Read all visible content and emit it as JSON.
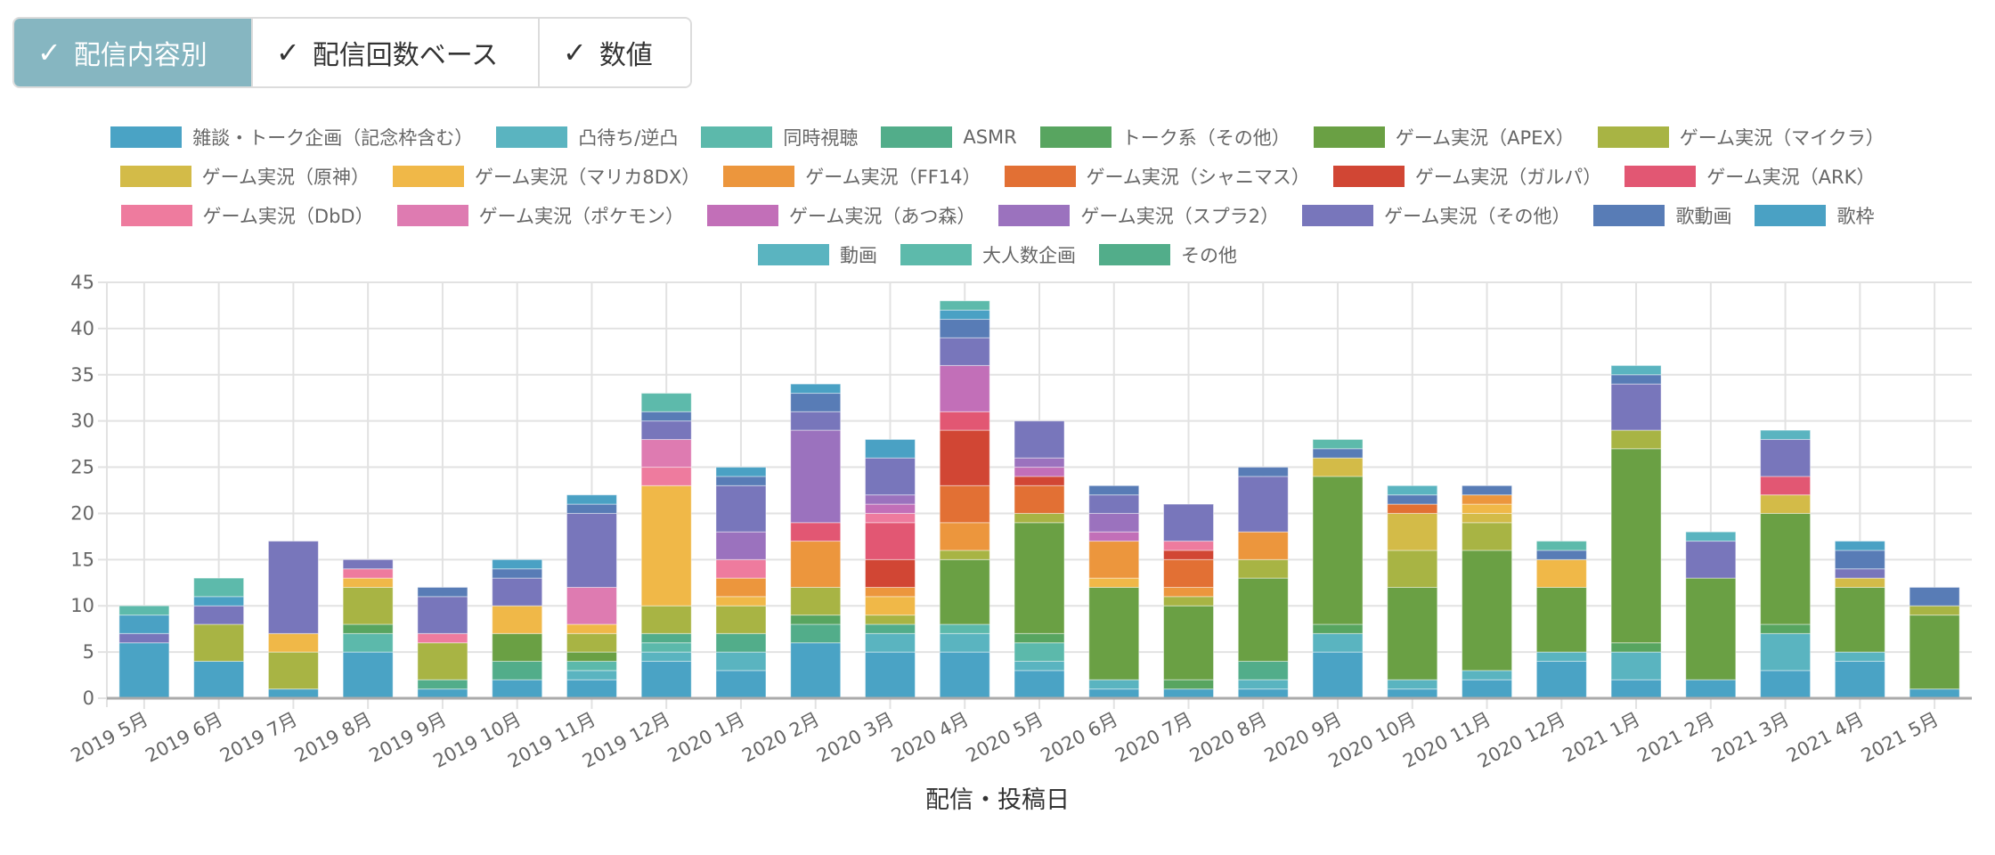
{
  "toolbar": {
    "buttons": [
      {
        "label": "配信内容別",
        "active": true,
        "icon": "check-icon"
      },
      {
        "label": "配信回数ベース",
        "active": false,
        "icon": "check-icon"
      },
      {
        "label": "数値",
        "active": false,
        "icon": "check-icon"
      }
    ],
    "check_glyph": "✓"
  },
  "chart_data": {
    "type": "bar",
    "stacked": true,
    "xlabel": "配信・投稿日",
    "ylabel": "",
    "ylim": [
      0,
      45
    ],
    "yticks": [
      "0",
      "5",
      "10",
      "15",
      "20",
      "25",
      "30",
      "35",
      "40",
      "45"
    ],
    "grid": true,
    "legend": "top",
    "categories": [
      "2019 5月",
      "2019 6月",
      "2019 7月",
      "2019 8月",
      "2019 9月",
      "2019 10月",
      "2019 11月",
      "2019 12月",
      "2020 1月",
      "2020 2月",
      "2020 3月",
      "2020 4月",
      "2020 5月",
      "2020 6月",
      "2020 7月",
      "2020 8月",
      "2020 9月",
      "2020 10月",
      "2020 11月",
      "2020 12月",
      "2021 1月",
      "2021 2月",
      "2021 3月",
      "2021 4月",
      "2021 5月"
    ],
    "series": [
      {
        "name": "雑談・トーク企画（記念枠含む）",
        "color": "#4aa3c5",
        "values": [
          6,
          4,
          1,
          5,
          1,
          2,
          2,
          4,
          3,
          6,
          5,
          5,
          3,
          1,
          1,
          1,
          5,
          1,
          2,
          4,
          2,
          2,
          3,
          4,
          1
        ]
      },
      {
        "name": "凸待ち/逆凸",
        "color": "#5ab4c0",
        "values": [
          0,
          0,
          0,
          0,
          0,
          0,
          1,
          1,
          2,
          0,
          2,
          2,
          1,
          1,
          0,
          1,
          2,
          1,
          1,
          1,
          3,
          0,
          4,
          1,
          0
        ]
      },
      {
        "name": "同時視聴",
        "color": "#5cb9ab",
        "values": [
          0,
          0,
          0,
          2,
          0,
          0,
          1,
          1,
          0,
          0,
          0,
          1,
          2,
          0,
          0,
          0,
          0,
          0,
          0,
          0,
          0,
          0,
          0,
          0,
          0
        ]
      },
      {
        "name": "ASMR",
        "color": "#52ad8a",
        "values": [
          0,
          0,
          0,
          0,
          1,
          2,
          0,
          1,
          2,
          2,
          1,
          0,
          0,
          0,
          0,
          2,
          0,
          0,
          0,
          0,
          0,
          0,
          0,
          0,
          0
        ]
      },
      {
        "name": "トーク系（その他）",
        "color": "#58a560",
        "values": [
          0,
          0,
          0,
          1,
          0,
          0,
          0,
          0,
          0,
          1,
          0,
          0,
          1,
          0,
          1,
          0,
          1,
          0,
          0,
          0,
          1,
          0,
          1,
          0,
          0
        ]
      },
      {
        "name": "ゲーム実況（APEX）",
        "color": "#6aa044",
        "values": [
          0,
          0,
          0,
          0,
          0,
          3,
          1,
          0,
          0,
          0,
          0,
          7,
          12,
          10,
          8,
          9,
          16,
          10,
          13,
          7,
          21,
          11,
          12,
          7,
          8
        ]
      },
      {
        "name": "ゲーム実況（マイクラ）",
        "color": "#a8b444",
        "values": [
          0,
          4,
          4,
          4,
          4,
          0,
          2,
          3,
          3,
          3,
          1,
          1,
          1,
          0,
          1,
          2,
          0,
          4,
          3,
          0,
          2,
          0,
          0,
          0,
          1
        ]
      },
      {
        "name": "ゲーム実況（原神）",
        "color": "#d3bb48",
        "values": [
          0,
          0,
          0,
          0,
          0,
          0,
          0,
          0,
          0,
          0,
          0,
          0,
          0,
          0,
          0,
          0,
          2,
          4,
          1,
          0,
          0,
          0,
          2,
          1,
          0
        ]
      },
      {
        "name": "ゲーム実況（マリカ8DX）",
        "color": "#f0b848",
        "values": [
          0,
          0,
          2,
          1,
          0,
          3,
          1,
          13,
          1,
          0,
          2,
          0,
          0,
          1,
          0,
          0,
          0,
          0,
          1,
          3,
          0,
          0,
          0,
          0,
          0
        ]
      },
      {
        "name": "ゲーム実況（FF14）",
        "color": "#ec963d",
        "values": [
          0,
          0,
          0,
          0,
          0,
          0,
          0,
          0,
          2,
          5,
          1,
          3,
          0,
          4,
          1,
          3,
          0,
          0,
          1,
          0,
          0,
          0,
          0,
          0,
          0
        ]
      },
      {
        "name": "ゲーム実況（シャニマス）",
        "color": "#e27034",
        "values": [
          0,
          0,
          0,
          0,
          0,
          0,
          0,
          0,
          0,
          0,
          0,
          4,
          3,
          0,
          3,
          0,
          0,
          1,
          0,
          0,
          0,
          0,
          0,
          0,
          0
        ]
      },
      {
        "name": "ゲーム実況（ガルパ）",
        "color": "#d14634",
        "values": [
          0,
          0,
          0,
          0,
          0,
          0,
          0,
          0,
          0,
          0,
          3,
          6,
          1,
          0,
          1,
          0,
          0,
          0,
          0,
          0,
          0,
          0,
          0,
          0,
          0
        ]
      },
      {
        "name": "ゲーム実況（ARK）",
        "color": "#e25773",
        "values": [
          0,
          0,
          0,
          0,
          0,
          0,
          0,
          0,
          0,
          2,
          4,
          2,
          0,
          0,
          0,
          0,
          0,
          0,
          0,
          0,
          0,
          0,
          2,
          0,
          0
        ]
      },
      {
        "name": "ゲーム実況（DbD）",
        "color": "#ee7b9e",
        "values": [
          0,
          0,
          0,
          1,
          1,
          0,
          0,
          2,
          2,
          0,
          1,
          0,
          0,
          0,
          1,
          0,
          0,
          0,
          0,
          0,
          0,
          0,
          0,
          0,
          0
        ]
      },
      {
        "name": "ゲーム実況（ポケモン）",
        "color": "#de7bb1",
        "values": [
          0,
          0,
          0,
          0,
          0,
          0,
          4,
          3,
          0,
          0,
          0,
          0,
          0,
          0,
          0,
          0,
          0,
          0,
          0,
          0,
          0,
          0,
          0,
          0,
          0
        ]
      },
      {
        "name": "ゲーム実況（あつ森）",
        "color": "#c26fb8",
        "values": [
          0,
          0,
          0,
          0,
          0,
          0,
          0,
          0,
          0,
          0,
          1,
          5,
          1,
          1,
          0,
          0,
          0,
          0,
          0,
          0,
          0,
          0,
          0,
          0,
          0
        ]
      },
      {
        "name": "ゲーム実況（スプラ2）",
        "color": "#9b72be",
        "values": [
          0,
          0,
          0,
          0,
          0,
          0,
          0,
          0,
          3,
          10,
          1,
          0,
          1,
          2,
          0,
          0,
          0,
          0,
          0,
          0,
          0,
          0,
          0,
          0,
          0
        ]
      },
      {
        "name": "ゲーム実況（その他）",
        "color": "#7876bb",
        "values": [
          1,
          2,
          10,
          1,
          4,
          3,
          8,
          2,
          5,
          2,
          4,
          3,
          4,
          2,
          4,
          6,
          0,
          0,
          0,
          0,
          5,
          4,
          4,
          1,
          0
        ]
      },
      {
        "name": "歌動画",
        "color": "#587cb6",
        "values": [
          0,
          0,
          0,
          0,
          1,
          1,
          1,
          1,
          1,
          2,
          0,
          2,
          0,
          1,
          0,
          1,
          1,
          1,
          1,
          1,
          1,
          0,
          0,
          2,
          2
        ]
      },
      {
        "name": "歌枠",
        "color": "#4aa1c4",
        "values": [
          2,
          1,
          0,
          0,
          0,
          1,
          1,
          0,
          1,
          1,
          2,
          1,
          0,
          0,
          0,
          0,
          0,
          0,
          0,
          0,
          0,
          0,
          0,
          1,
          0
        ]
      },
      {
        "name": "動画",
        "color": "#5ab4c0",
        "values": [
          0,
          0,
          0,
          0,
          0,
          0,
          0,
          0,
          0,
          0,
          0,
          0,
          0,
          0,
          0,
          0,
          0,
          1,
          0,
          0,
          1,
          1,
          1,
          0,
          0
        ]
      },
      {
        "name": "大人数企画",
        "color": "#5dbaab",
        "values": [
          1,
          2,
          0,
          0,
          0,
          0,
          0,
          2,
          0,
          0,
          0,
          1,
          0,
          0,
          0,
          0,
          1,
          0,
          0,
          1,
          0,
          0,
          0,
          0,
          0
        ]
      },
      {
        "name": "その他",
        "color": "#52ad8a",
        "values": [
          0,
          0,
          0,
          0,
          0,
          0,
          0,
          0,
          0,
          0,
          0,
          0,
          0,
          0,
          0,
          0,
          0,
          0,
          0,
          0,
          0,
          0,
          0,
          0,
          0
        ]
      }
    ]
  }
}
